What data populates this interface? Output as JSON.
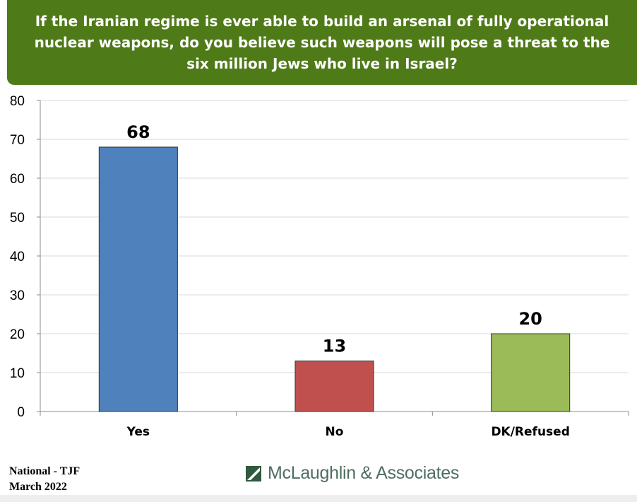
{
  "header": {
    "title": "If the Iranian regime is ever able to build an arsenal of fully operational nuclear weapons, do you believe such weapons will pose a threat to the six million Jews who live in Israel?"
  },
  "chart_data": {
    "type": "bar",
    "categories": [
      "Yes",
      "No",
      "DK/Refused"
    ],
    "values": [
      68,
      13,
      20
    ],
    "colors": [
      "#4f81bd",
      "#c0504d",
      "#9bbb59"
    ],
    "ylim": [
      0,
      80
    ],
    "yticks": [
      "0",
      "10",
      "20",
      "30",
      "40",
      "50",
      "60",
      "70",
      "80"
    ],
    "grid": true,
    "legend": "none"
  },
  "footer": {
    "line1": "National - TJF",
    "line2": "March 2022",
    "brand": "McLaughlin & Associates",
    "brand_color": "#4e6e60"
  }
}
